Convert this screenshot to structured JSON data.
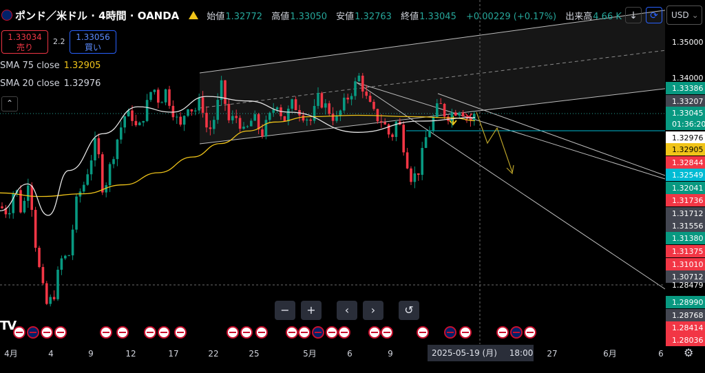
{
  "header": {
    "symbol": "ポンド／米ドル · 4時間 · OANDA",
    "open_label": "始値",
    "open": "1.32772",
    "high_label": "高値",
    "high": "1.33050",
    "low_label": "安値",
    "low": "1.32763",
    "close_label": "終値",
    "close": "1.33045",
    "change": "+0.00229 (+0.17%)",
    "volume_label": "出来高",
    "volume": "4.66 K",
    "currency": "USD"
  },
  "trade": {
    "bid_price": "1.33034",
    "bid_label": "売り",
    "spread": "2.2",
    "ask_price": "1.33056",
    "ask_label": "買い"
  },
  "indicators": [
    {
      "name": "SMA 75 close",
      "value": "1.32905",
      "color": "#f0c419"
    },
    {
      "name": "SMA 20 close",
      "value": "1.32976",
      "color": "#e6e6e6"
    }
  ],
  "icons": {
    "collapse": "chevron-up-icon",
    "download": "arrow-down-icon",
    "sync": "sync-icon",
    "zoom_out": "minus-icon",
    "zoom_in": "plus-icon",
    "left": "chevron-left-icon",
    "right": "chevron-right-icon",
    "reset": "reset-icon",
    "settings": "gear-icon",
    "event": "flag-icon"
  },
  "nav_glyphs": [
    "−",
    "+",
    "‹",
    "›",
    "↺"
  ],
  "time_labels": [
    "4月",
    "4",
    "9",
    "12",
    "17",
    "22",
    "25",
    "5月",
    "6",
    "9",
    "27",
    "6月",
    "6"
  ],
  "crosshair": {
    "date": "2025-05-19 (月)",
    "time": "18:00"
  },
  "chart_data": {
    "type": "candlestick",
    "symbol": "GBPUSD",
    "timeframe": "4H",
    "ylim": [
      1.2793,
      1.356
    ],
    "price_axis_labels": [
      "1.35000",
      "1.34000",
      "1.33386",
      "1.33207",
      "1.33045",
      "01:36:20",
      "1.32976",
      "1.32905",
      "1.32844",
      "1.32549",
      "1.32041",
      "1.31736",
      "1.31712",
      "1.31556",
      "1.31380",
      "1.31375",
      "1.31010",
      "1.30712",
      "1.28479",
      "1.28990",
      "1.28768",
      "1.28414",
      "1.28036"
    ],
    "price_axis_colors": [
      "#000000",
      "#000000",
      "#089981",
      "#434651",
      "#089981",
      "#089981",
      "#ffffff",
      "#f0c419",
      "#f23645",
      "#00bcd4",
      "#089981",
      "#f23645",
      "#434651",
      "#434651",
      "#089981",
      "#f23645",
      "#f23645",
      "#434651",
      "#000000",
      "#089981",
      "#434651",
      "#f23645",
      "#f23645"
    ],
    "sma75_sample": [
      1.313,
      1.3122,
      1.3128,
      1.3148,
      1.3175,
      1.321,
      1.324,
      1.3268,
      1.3288,
      1.33,
      1.3303,
      1.33,
      1.3297,
      1.3291
    ],
    "sma20_sample": [
      1.309,
      1.315,
      1.308,
      1.318,
      1.3262,
      1.3322,
      1.331,
      1.3345,
      1.3335,
      1.331,
      1.3265,
      1.329,
      1.3298
    ],
    "last_close": 1.33045,
    "grid": false,
    "legend": "top-left"
  }
}
